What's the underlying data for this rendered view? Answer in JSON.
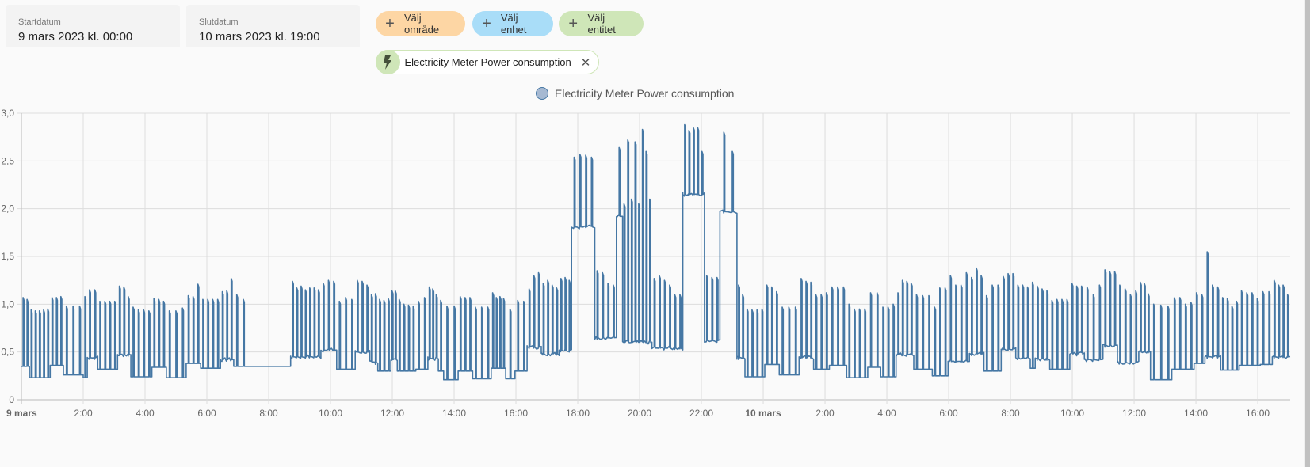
{
  "date_range": {
    "start_label": "Startdatum",
    "start_value": "9 mars 2023 kl. 00:00",
    "end_label": "Slutdatum",
    "end_value": "10 mars 2023 kl. 19:00"
  },
  "target_picker": {
    "area_label": "Välj område",
    "device_label": "Välj enhet",
    "entity_label": "Välj entitet",
    "area_color": "#fdd6a4",
    "device_color": "#a9ddf8",
    "entity_color": "#cfe6b8",
    "selected": [
      {
        "label": "Electricity Meter Power consumption",
        "icon": "flash-icon"
      }
    ]
  },
  "chart_data": {
    "type": "line",
    "title": "",
    "legend": [
      "Electricity Meter Power consumption"
    ],
    "legend_placement": "top-center",
    "series_color": "#4577a4",
    "xlabel": "",
    "ylabel": "",
    "x_unit": "hours since 9 mars 00:00",
    "xlim": [
      0,
      41.05
    ],
    "ylim": [
      0,
      3.0
    ],
    "grid": true,
    "y_ticks": [
      {
        "value": 0,
        "label": "0"
      },
      {
        "value": 0.5,
        "label": "0,5"
      },
      {
        "value": 1.0,
        "label": "1,0"
      },
      {
        "value": 1.5,
        "label": "1,5"
      },
      {
        "value": 2.0,
        "label": "2,0"
      },
      {
        "value": 2.5,
        "label": "2,5"
      },
      {
        "value": 3.0,
        "label": "3,0"
      }
    ],
    "x_ticks": [
      {
        "value": 0,
        "label": "9 mars",
        "bold": true
      },
      {
        "value": 2,
        "label": "2:00"
      },
      {
        "value": 4,
        "label": "4:00"
      },
      {
        "value": 6,
        "label": "6:00"
      },
      {
        "value": 8,
        "label": "8:00"
      },
      {
        "value": 10,
        "label": "10:00"
      },
      {
        "value": 12,
        "label": "12:00"
      },
      {
        "value": 14,
        "label": "14:00"
      },
      {
        "value": 16,
        "label": "16:00"
      },
      {
        "value": 18,
        "label": "18:00"
      },
      {
        "value": 20,
        "label": "20:00"
      },
      {
        "value": 22,
        "label": "22:00"
      },
      {
        "value": 24,
        "label": "10 mars",
        "bold": true
      },
      {
        "value": 26,
        "label": "2:00"
      },
      {
        "value": 28,
        "label": "4:00"
      },
      {
        "value": 30,
        "label": "6:00"
      },
      {
        "value": 32,
        "label": "8:00"
      },
      {
        "value": 34,
        "label": "10:00"
      },
      {
        "value": 36,
        "label": "12:00"
      },
      {
        "value": 38,
        "label": "14:00"
      },
      {
        "value": 40,
        "label": "16:00"
      }
    ],
    "segments_format": "[start_hour, end_hour, base_kW, [pulse_peaks_kW...]]",
    "segments": [
      [
        0,
        0.26,
        0.35,
        [
          1.07,
          1.05
        ]
      ],
      [
        0.26,
        0.93,
        0.23,
        [
          0.94,
          0.93,
          0.93,
          0.94,
          0.95
        ]
      ],
      [
        0.93,
        1.36,
        0.36,
        [
          1.07,
          1.07,
          1.08
        ]
      ],
      [
        1.36,
        2.0,
        0.26,
        [
          0.98,
          0.98,
          0.98
        ]
      ],
      [
        2.0,
        2.13,
        0.23,
        [
          1.08
        ]
      ],
      [
        2.13,
        2.47,
        0.44,
        [
          1.15,
          1.15
        ]
      ],
      [
        2.47,
        3.11,
        0.32,
        [
          1.03,
          1.03,
          1.03,
          1.03
        ]
      ],
      [
        3.11,
        3.54,
        0.47,
        [
          1.19,
          1.18,
          1.08
        ]
      ],
      [
        3.54,
        4.22,
        0.24,
        [
          0.97,
          0.94,
          0.94,
          0.93
        ]
      ],
      [
        4.22,
        4.69,
        0.34,
        [
          1.06,
          1.05,
          1.03
        ]
      ],
      [
        4.69,
        5.33,
        0.23,
        [
          0.93,
          0.93,
          0.96
        ]
      ],
      [
        5.33,
        5.8,
        0.38,
        [
          1.09,
          1.08,
          1.21
        ]
      ],
      [
        5.8,
        6.44,
        0.33,
        [
          1.05,
          1.05,
          1.05,
          1.05
        ]
      ],
      [
        6.44,
        6.87,
        0.42,
        [
          1.13,
          1.14,
          1.27
        ]
      ],
      [
        6.87,
        7.3,
        0.35,
        [
          1.1,
          1.05
        ]
      ],
      [
        7.3,
        8.71,
        0.35,
        []
      ],
      [
        8.71,
        9.69,
        0.45,
        [
          1.24,
          1.17,
          1.19,
          1.15,
          1.17,
          1.17,
          1.15
        ]
      ],
      [
        9.69,
        10.2,
        0.52,
        [
          1.22,
          1.25,
          1.24
        ]
      ],
      [
        10.2,
        10.8,
        0.32,
        [
          1.03,
          1.07,
          1.05
        ]
      ],
      [
        10.8,
        11.27,
        0.5,
        [
          1.25,
          1.24,
          1.2
        ]
      ],
      [
        11.27,
        11.53,
        0.39,
        [
          1.1,
          1.11
        ]
      ],
      [
        11.53,
        11.95,
        0.3,
        [
          1.05,
          1.04,
          1.06
        ]
      ],
      [
        11.95,
        12.16,
        0.42,
        [
          1.14,
          1.14
        ]
      ],
      [
        12.16,
        12.76,
        0.3,
        [
          1.05,
          1.0,
          0.99,
          0.98
        ]
      ],
      [
        12.76,
        13.15,
        0.32,
        [
          1.03,
          1.07
        ]
      ],
      [
        13.15,
        13.49,
        0.43,
        [
          1.18,
          1.16,
          1.1
        ]
      ],
      [
        13.49,
        13.66,
        0.3,
        [
          1.04
        ]
      ],
      [
        13.66,
        14.13,
        0.21,
        [
          0.98,
          0.98
        ]
      ],
      [
        14.13,
        14.6,
        0.3,
        [
          1.08,
          1.07,
          1.07
        ]
      ],
      [
        14.6,
        15.2,
        0.22,
        [
          0.97,
          0.97,
          0.97
        ]
      ],
      [
        15.2,
        15.67,
        0.33,
        [
          1.12,
          1.07,
          1.08,
          1.06
        ]
      ],
      [
        15.67,
        15.97,
        0.22,
        [
          0.95
        ]
      ],
      [
        15.97,
        16.36,
        0.3,
        [
          1.04,
          1.03
        ]
      ],
      [
        16.36,
        16.82,
        0.55,
        [
          1.16,
          1.3,
          1.33
        ]
      ],
      [
        16.82,
        17.4,
        0.48,
        [
          1.22,
          1.25,
          1.2,
          1.17
        ]
      ],
      [
        17.4,
        17.8,
        0.52,
        [
          1.27,
          1.28,
          1.25
        ]
      ],
      [
        17.8,
        18.55,
        1.81,
        [
          2.54,
          2.57,
          2.56,
          2.54
        ]
      ],
      [
        18.55,
        19.25,
        0.65,
        [
          1.35,
          1.33,
          1.22,
          1.2
        ]
      ],
      [
        19.25,
        19.45,
        1.92,
        [
          2.64
        ]
      ],
      [
        19.45,
        20.4,
        0.6,
        [
          2.05,
          2.72,
          2.1,
          2.7,
          2.05,
          2.83,
          2.6,
          2.1
        ]
      ],
      [
        20.4,
        21.4,
        0.54,
        [
          1.27,
          1.3,
          1.25,
          1.2,
          1.1,
          1.1
        ]
      ],
      [
        21.4,
        22.1,
        2.15,
        [
          2.88,
          2.82,
          2.85,
          2.85,
          2.6
        ]
      ],
      [
        22.1,
        22.6,
        0.62,
        [
          1.3,
          1.28,
          1.28
        ]
      ],
      [
        22.6,
        23.15,
        1.97,
        [
          2.8,
          2.6
        ]
      ],
      [
        23.15,
        23.41,
        0.44,
        [
          1.2,
          1.1
        ]
      ],
      [
        23.41,
        24.05,
        0.24,
        [
          0.95,
          0.94,
          0.94,
          0.95
        ]
      ],
      [
        24.05,
        24.52,
        0.37,
        [
          1.2,
          1.18,
          1.13
        ]
      ],
      [
        24.52,
        25.16,
        0.26,
        [
          0.97,
          0.97,
          0.97
        ]
      ],
      [
        25.16,
        25.63,
        0.44,
        [
          1.27,
          1.24,
          1.23
        ]
      ],
      [
        25.63,
        26.14,
        0.32,
        [
          1.1,
          1.1,
          1.12
        ]
      ],
      [
        26.14,
        26.7,
        0.36,
        [
          1.18,
          1.18,
          1.18
        ]
      ],
      [
        26.7,
        27.38,
        0.23,
        [
          1.0,
          0.95,
          0.95,
          0.95
        ]
      ],
      [
        27.38,
        27.8,
        0.34,
        [
          1.12,
          1.12
        ]
      ],
      [
        27.8,
        28.3,
        0.24,
        [
          0.97,
          0.97,
          1.0
        ]
      ],
      [
        28.3,
        28.87,
        0.47,
        [
          1.12,
          1.25,
          1.24,
          1.22
        ]
      ],
      [
        28.87,
        29.47,
        0.32,
        [
          1.1,
          1.09,
          1.09
        ]
      ],
      [
        29.47,
        29.98,
        0.25,
        [
          0.97,
          1.17,
          1.17
        ]
      ],
      [
        29.98,
        30.67,
        0.4,
        [
          1.3,
          1.2,
          1.2,
          1.33
        ]
      ],
      [
        30.67,
        31.14,
        0.48,
        [
          1.28,
          1.38,
          1.3
        ]
      ],
      [
        31.14,
        31.7,
        0.3,
        [
          1.09,
          1.2,
          1.2
        ]
      ],
      [
        31.7,
        32.17,
        0.53,
        [
          1.29,
          1.32,
          1.32
        ]
      ],
      [
        32.17,
        32.64,
        0.44,
        [
          1.2,
          1.2,
          1.18
        ]
      ],
      [
        32.64,
        32.8,
        0.33,
        [
          1.23
        ]
      ],
      [
        32.8,
        33.27,
        0.43,
        [
          1.19,
          1.16,
          1.14
        ]
      ],
      [
        33.27,
        33.92,
        0.32,
        [
          1.04,
          1.05,
          1.05,
          1.05
        ]
      ],
      [
        33.92,
        34.39,
        0.48,
        [
          1.22,
          1.19,
          1.19
        ]
      ],
      [
        34.39,
        34.99,
        0.42,
        [
          1.18,
          1.1,
          1.2
        ]
      ],
      [
        34.99,
        35.46,
        0.57,
        [
          1.36,
          1.34,
          1.34
        ]
      ],
      [
        35.46,
        36.15,
        0.39,
        [
          1.2,
          1.16,
          1.1,
          1.14
        ]
      ],
      [
        36.15,
        36.53,
        0.5,
        [
          1.23,
          1.22,
          1.11
        ]
      ],
      [
        36.53,
        37.22,
        0.21,
        [
          1.0,
          0.99,
          0.98
        ]
      ],
      [
        37.22,
        37.94,
        0.32,
        [
          1.07,
          1.07,
          1.0,
          1.02
        ]
      ],
      [
        37.94,
        38.29,
        0.38,
        [
          1.12,
          1.1
        ]
      ],
      [
        38.29,
        38.8,
        0.45,
        [
          1.55,
          1.2,
          1.18
        ]
      ],
      [
        38.8,
        39.4,
        0.31,
        [
          1.07,
          1.06,
          0.98,
          1.03
        ]
      ],
      [
        39.4,
        40.08,
        0.36,
        [
          1.14,
          1.12,
          1.12,
          1.06
        ]
      ],
      [
        40.08,
        40.47,
        0.37,
        [
          1.13,
          1.13
        ]
      ],
      [
        40.47,
        41.05,
        0.45,
        [
          1.25,
          1.2,
          1.2,
          1.1
        ]
      ]
    ]
  }
}
